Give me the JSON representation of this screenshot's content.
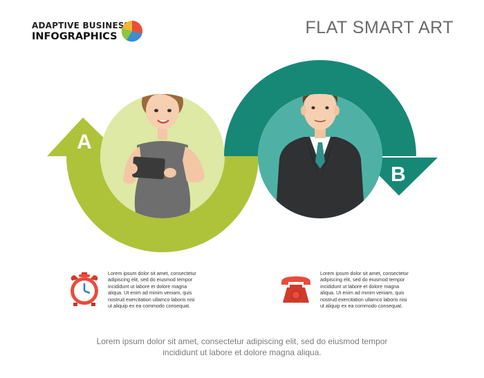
{
  "header": {
    "logo_line1": "ADAPTIVE BUSINESS",
    "logo_line2": "INFOGRAPHICS",
    "title": "FLAT SMART ART"
  },
  "diagram": {
    "label_a": "A",
    "label_b": "B",
    "colors": {
      "a": "#aec33a",
      "a_circle": "#dde9a4",
      "b": "#178876",
      "b_circle": "#4fb1a5"
    }
  },
  "items": [
    {
      "icon": "alarm-clock-icon",
      "lines": [
        "Lorem ipsum dolor sit amet, consectetur",
        "adipiscing elit, sed do eiusmod tempor",
        "incididunt ut labore et dolore magna",
        "aliqua. Ut enim ad minim veniam, quis",
        "nostrud exercitation ullamco laboris nisi",
        "ut aliquip ex ea commodo consequat."
      ]
    },
    {
      "icon": "telephone-icon",
      "lines": [
        "Lorem ipsum dolor sit amet, consectetur",
        "adipiscing elit, sed do eiusmod tempor",
        "incididunt ut labore et dolore magna",
        "aliqua. Ut enim ad minim veniam, quis",
        "nostrud exercitation ullamco laboris nisi",
        "ut aliquip ex ea commodo consequat."
      ]
    }
  ],
  "footer": {
    "line1": "Lorem ipsum dolor sit amet, consectetur adipiscing elit, sed do eiusmod tempor",
    "line2": "incididunt ut labore et dolore magna aliqua."
  }
}
